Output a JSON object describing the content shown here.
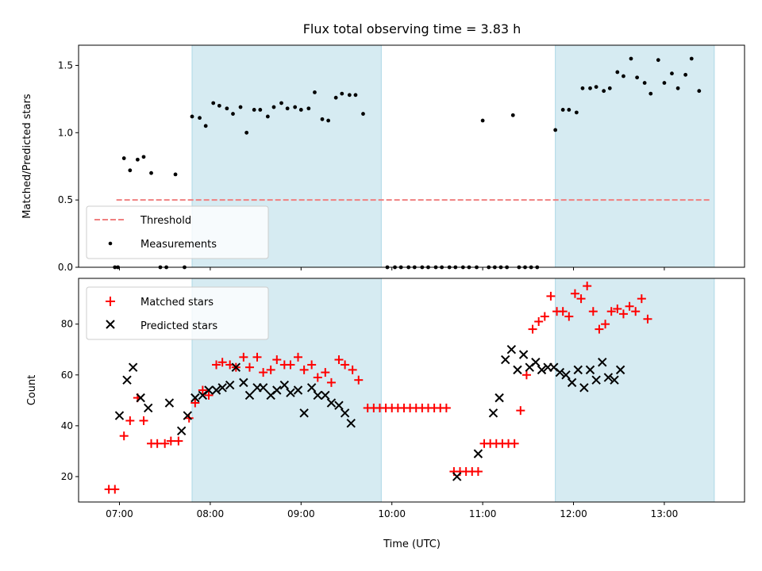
{
  "chart_data": [
    {
      "type": "scatter",
      "title": "Flux total observing time = 3.83 h",
      "xlabel": "",
      "ylabel": "Matched/Predicted stars",
      "xlim": [
        "06:33",
        "13:53"
      ],
      "ylim": [
        0,
        1.65
      ],
      "xticks": [
        "07:00",
        "08:00",
        "09:00",
        "10:00",
        "11:00",
        "12:00",
        "13:00"
      ],
      "xticks_labeled": false,
      "yticks": [
        0.0,
        0.5,
        1.0,
        1.5
      ],
      "ytick_labels": [
        "0.0",
        "0.5",
        "1.0",
        "1.5"
      ],
      "shaded_regions": [
        [
          "07:48",
          "09:53"
        ],
        [
          "11:48",
          "13:33"
        ]
      ],
      "shade_color": "#add8e6",
      "legend_loc": "lower left",
      "threshold": {
        "name": "Threshold",
        "y": 0.5,
        "x": [
          "06:58",
          "13:31"
        ],
        "color": "#f08080",
        "style": "dashed"
      },
      "series": [
        {
          "name": "Measurements",
          "color": "#000000",
          "marker": "dot",
          "points": [
            [
              "06:57",
              0
            ],
            [
              "06:59",
              0
            ],
            [
              "07:03",
              0.81
            ],
            [
              "07:07",
              0.72
            ],
            [
              "07:12",
              0.8
            ],
            [
              "07:16",
              0.82
            ],
            [
              "07:21",
              0.7
            ],
            [
              "07:27",
              0
            ],
            [
              "07:31",
              0
            ],
            [
              "07:37",
              0.69
            ],
            [
              "07:43",
              0
            ],
            [
              "07:48",
              1.12
            ],
            [
              "07:53",
              1.11
            ],
            [
              "07:57",
              1.05
            ],
            [
              "08:02",
              1.22
            ],
            [
              "08:06",
              1.2
            ],
            [
              "08:11",
              1.18
            ],
            [
              "08:15",
              1.14
            ],
            [
              "08:20",
              1.19
            ],
            [
              "08:24",
              1.0
            ],
            [
              "08:29",
              1.17
            ],
            [
              "08:33",
              1.17
            ],
            [
              "08:38",
              1.12
            ],
            [
              "08:42",
              1.19
            ],
            [
              "08:47",
              1.22
            ],
            [
              "08:51",
              1.18
            ],
            [
              "08:56",
              1.19
            ],
            [
              "09:00",
              1.17
            ],
            [
              "09:05",
              1.18
            ],
            [
              "09:09",
              1.3
            ],
            [
              "09:14",
              1.1
            ],
            [
              "09:18",
              1.09
            ],
            [
              "09:23",
              1.26
            ],
            [
              "09:27",
              1.29
            ],
            [
              "09:32",
              1.28
            ],
            [
              "09:36",
              1.28
            ],
            [
              "09:41",
              1.14
            ],
            [
              "09:57",
              0
            ],
            [
              "10:02",
              0
            ],
            [
              "10:06",
              0
            ],
            [
              "10:11",
              0
            ],
            [
              "10:15",
              0
            ],
            [
              "10:20",
              0
            ],
            [
              "10:24",
              0
            ],
            [
              "10:29",
              0
            ],
            [
              "10:33",
              0
            ],
            [
              "10:38",
              0
            ],
            [
              "10:42",
              0
            ],
            [
              "10:47",
              0
            ],
            [
              "10:51",
              0
            ],
            [
              "10:56",
              0
            ],
            [
              "11:00",
              1.09
            ],
            [
              "11:04",
              0
            ],
            [
              "11:08",
              0
            ],
            [
              "11:12",
              0
            ],
            [
              "11:16",
              0
            ],
            [
              "11:20",
              1.13
            ],
            [
              "11:24",
              0
            ],
            [
              "11:28",
              0
            ],
            [
              "11:32",
              0
            ],
            [
              "11:36",
              0
            ],
            [
              "11:48",
              1.02
            ],
            [
              "11:53",
              1.17
            ],
            [
              "11:57",
              1.17
            ],
            [
              "12:02",
              1.15
            ],
            [
              "12:06",
              1.33
            ],
            [
              "12:11",
              1.33
            ],
            [
              "12:15",
              1.34
            ],
            [
              "12:20",
              1.31
            ],
            [
              "12:24",
              1.33
            ],
            [
              "12:29",
              1.45
            ],
            [
              "12:33",
              1.42
            ],
            [
              "12:38",
              1.55
            ],
            [
              "12:42",
              1.41
            ],
            [
              "12:47",
              1.37
            ],
            [
              "12:51",
              1.29
            ],
            [
              "12:56",
              1.54
            ],
            [
              "13:00",
              1.37
            ],
            [
              "13:05",
              1.44
            ],
            [
              "13:09",
              1.33
            ],
            [
              "13:14",
              1.43
            ],
            [
              "13:18",
              1.55
            ],
            [
              "13:23",
              1.31
            ]
          ]
        }
      ]
    },
    {
      "type": "scatter",
      "title": "",
      "xlabel": "Time (UTC)",
      "ylabel": "Count",
      "xlim": [
        "06:33",
        "13:53"
      ],
      "ylim": [
        10,
        98
      ],
      "xticks": [
        "07:00",
        "08:00",
        "09:00",
        "10:00",
        "11:00",
        "12:00",
        "13:00"
      ],
      "yticks": [
        20,
        40,
        60,
        80
      ],
      "ytick_labels": [
        "20",
        "40",
        "60",
        "80"
      ],
      "shaded_regions": [
        [
          "07:48",
          "09:53"
        ],
        [
          "11:48",
          "13:33"
        ]
      ],
      "shade_color": "#add8e6",
      "legend_loc": "upper left",
      "series": [
        {
          "name": "Matched stars",
          "color": "#ff0000",
          "marker": "plus",
          "points": [
            [
              "06:53",
              15
            ],
            [
              "06:57",
              15
            ],
            [
              "07:03",
              36
            ],
            [
              "07:07",
              42
            ],
            [
              "07:12",
              51
            ],
            [
              "07:16",
              42
            ],
            [
              "07:21",
              33
            ],
            [
              "07:25",
              33
            ],
            [
              "07:30",
              33
            ],
            [
              "07:34",
              34
            ],
            [
              "07:39",
              34
            ],
            [
              "07:46",
              43
            ],
            [
              "07:50",
              49
            ],
            [
              "07:55",
              54
            ],
            [
              "07:59",
              52
            ],
            [
              "08:04",
              64
            ],
            [
              "08:08",
              65
            ],
            [
              "08:13",
              64
            ],
            [
              "08:17",
              63
            ],
            [
              "08:22",
              67
            ],
            [
              "08:26",
              63
            ],
            [
              "08:31",
              67
            ],
            [
              "08:35",
              61
            ],
            [
              "08:40",
              62
            ],
            [
              "08:44",
              66
            ],
            [
              "08:49",
              64
            ],
            [
              "08:53",
              64
            ],
            [
              "08:58",
              67
            ],
            [
              "09:02",
              62
            ],
            [
              "09:07",
              64
            ],
            [
              "09:11",
              59
            ],
            [
              "09:16",
              61
            ],
            [
              "09:20",
              57
            ],
            [
              "09:25",
              66
            ],
            [
              "09:29",
              64
            ],
            [
              "09:34",
              62
            ],
            [
              "09:38",
              58
            ],
            [
              "09:44",
              47
            ],
            [
              "09:48",
              47
            ],
            [
              "09:52",
              47
            ],
            [
              "09:56",
              47
            ],
            [
              "10:00",
              47
            ],
            [
              "10:04",
              47
            ],
            [
              "10:08",
              47
            ],
            [
              "10:12",
              47
            ],
            [
              "10:16",
              47
            ],
            [
              "10:20",
              47
            ],
            [
              "10:24",
              47
            ],
            [
              "10:28",
              47
            ],
            [
              "10:32",
              47
            ],
            [
              "10:36",
              47
            ],
            [
              "10:41",
              22
            ],
            [
              "10:45",
              22
            ],
            [
              "10:49",
              22
            ],
            [
              "10:53",
              22
            ],
            [
              "10:57",
              22
            ],
            [
              "11:01",
              33
            ],
            [
              "11:05",
              33
            ],
            [
              "11:09",
              33
            ],
            [
              "11:13",
              33
            ],
            [
              "11:17",
              33
            ],
            [
              "11:21",
              33
            ],
            [
              "11:25",
              46
            ],
            [
              "11:29",
              60
            ],
            [
              "11:33",
              78
            ],
            [
              "11:37",
              81
            ],
            [
              "11:41",
              83
            ],
            [
              "11:45",
              91
            ],
            [
              "11:49",
              85
            ],
            [
              "11:53",
              85
            ],
            [
              "11:57",
              83
            ],
            [
              "12:01",
              92
            ],
            [
              "12:05",
              90
            ],
            [
              "12:09",
              95
            ],
            [
              "12:13",
              85
            ],
            [
              "12:17",
              78
            ],
            [
              "12:21",
              80
            ],
            [
              "12:25",
              85
            ],
            [
              "12:29",
              86
            ],
            [
              "12:33",
              84
            ],
            [
              "12:37",
              87
            ],
            [
              "12:41",
              85
            ],
            [
              "12:45",
              90
            ],
            [
              "12:49",
              82
            ]
          ]
        },
        {
          "name": "Predicted stars",
          "color": "#000000",
          "marker": "x",
          "points": [
            [
              "07:00",
              44
            ],
            [
              "07:05",
              58
            ],
            [
              "07:09",
              63
            ],
            [
              "07:14",
              51
            ],
            [
              "07:19",
              47
            ],
            [
              "07:33",
              49
            ],
            [
              "07:41",
              38
            ],
            [
              "07:45",
              44
            ],
            [
              "07:50",
              51
            ],
            [
              "07:55",
              52
            ],
            [
              "07:59",
              54
            ],
            [
              "08:04",
              54
            ],
            [
              "08:08",
              55
            ],
            [
              "08:13",
              56
            ],
            [
              "08:17",
              63
            ],
            [
              "08:22",
              57
            ],
            [
              "08:26",
              52
            ],
            [
              "08:31",
              55
            ],
            [
              "08:35",
              55
            ],
            [
              "08:40",
              52
            ],
            [
              "08:44",
              54
            ],
            [
              "08:49",
              56
            ],
            [
              "08:53",
              53
            ],
            [
              "08:58",
              54
            ],
            [
              "09:02",
              45
            ],
            [
              "09:07",
              55
            ],
            [
              "09:11",
              52
            ],
            [
              "09:16",
              52
            ],
            [
              "09:20",
              49
            ],
            [
              "09:25",
              48
            ],
            [
              "09:29",
              45
            ],
            [
              "09:33",
              41
            ],
            [
              "10:43",
              20
            ],
            [
              "10:57",
              29
            ],
            [
              "11:07",
              45
            ],
            [
              "11:11",
              51
            ],
            [
              "11:15",
              66
            ],
            [
              "11:19",
              70
            ],
            [
              "11:23",
              62
            ],
            [
              "11:27",
              68
            ],
            [
              "11:31",
              63
            ],
            [
              "11:35",
              65
            ],
            [
              "11:39",
              62
            ],
            [
              "11:43",
              63
            ],
            [
              "11:47",
              63
            ],
            [
              "11:51",
              61
            ],
            [
              "11:55",
              60
            ],
            [
              "11:59",
              57
            ],
            [
              "12:03",
              62
            ],
            [
              "12:07",
              55
            ],
            [
              "12:11",
              62
            ],
            [
              "12:15",
              58
            ],
            [
              "12:19",
              65
            ],
            [
              "12:23",
              59
            ],
            [
              "12:27",
              58
            ],
            [
              "12:31",
              62
            ]
          ]
        }
      ]
    }
  ]
}
